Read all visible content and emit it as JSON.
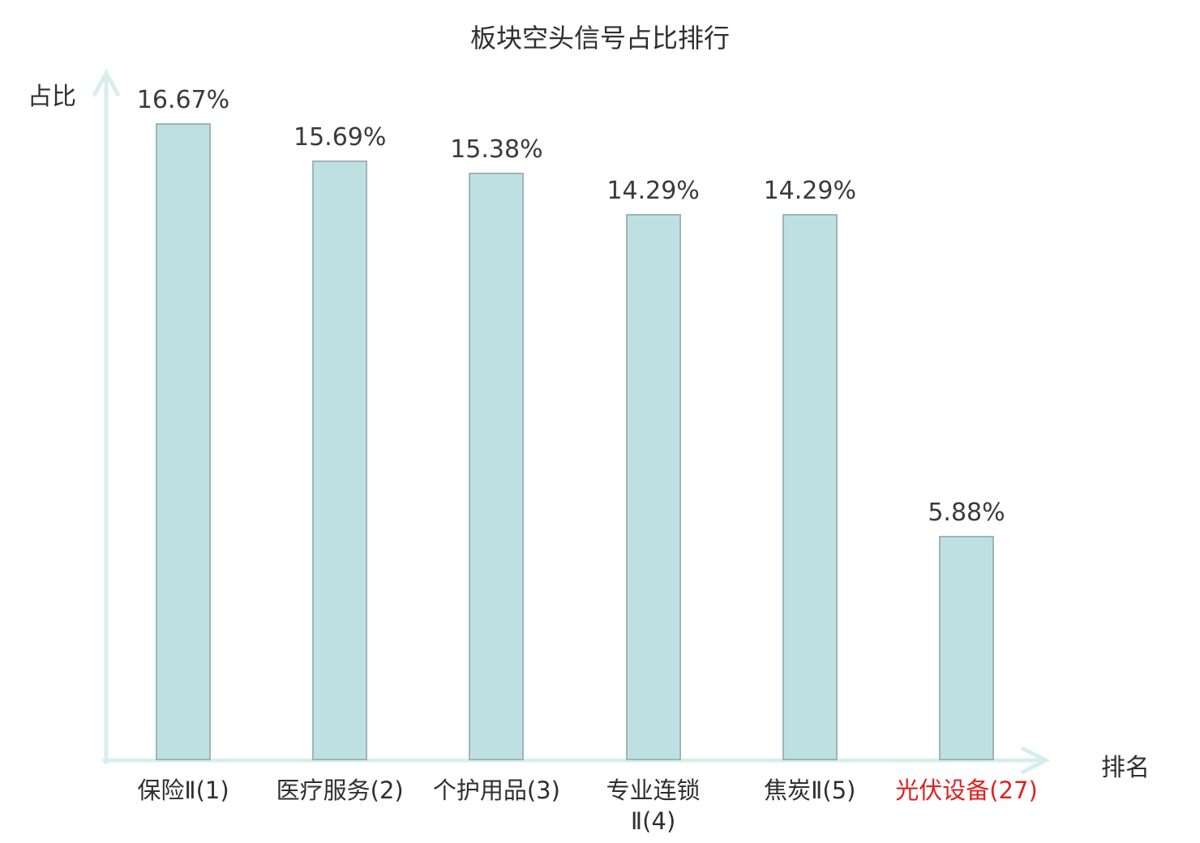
{
  "title": "板块空头信号占比排行",
  "y_axis_label": "占比",
  "x_axis_label": "排名",
  "chart_data": {
    "type": "bar",
    "title": "板块空头信号占比排行",
    "xlabel": "排名",
    "ylabel": "占比",
    "categories": [
      "保险Ⅱ(1)",
      "医疗服务(2)",
      "个护用品(3)",
      "专业连锁\nⅡ(4)",
      "焦炭Ⅱ(5)",
      "光伏设备(27)"
    ],
    "values": [
      16.67,
      15.69,
      15.38,
      14.29,
      14.29,
      5.88
    ],
    "value_labels": [
      "16.67%",
      "15.69%",
      "15.38%",
      "14.29%",
      "14.29%",
      "5.88%"
    ],
    "ranks": [
      1,
      2,
      3,
      4,
      5,
      27
    ],
    "highlighted_category_index": 5,
    "ylim": [
      0,
      18
    ],
    "grid": false,
    "legend": false
  },
  "colors": {
    "bar_fill": "#bfe0e3",
    "bar_border": "#9db5b7",
    "axis": "#d8edee",
    "text": "#2f2f2f",
    "value_text": "#3a3a3a",
    "highlight_text": "#e02020"
  }
}
